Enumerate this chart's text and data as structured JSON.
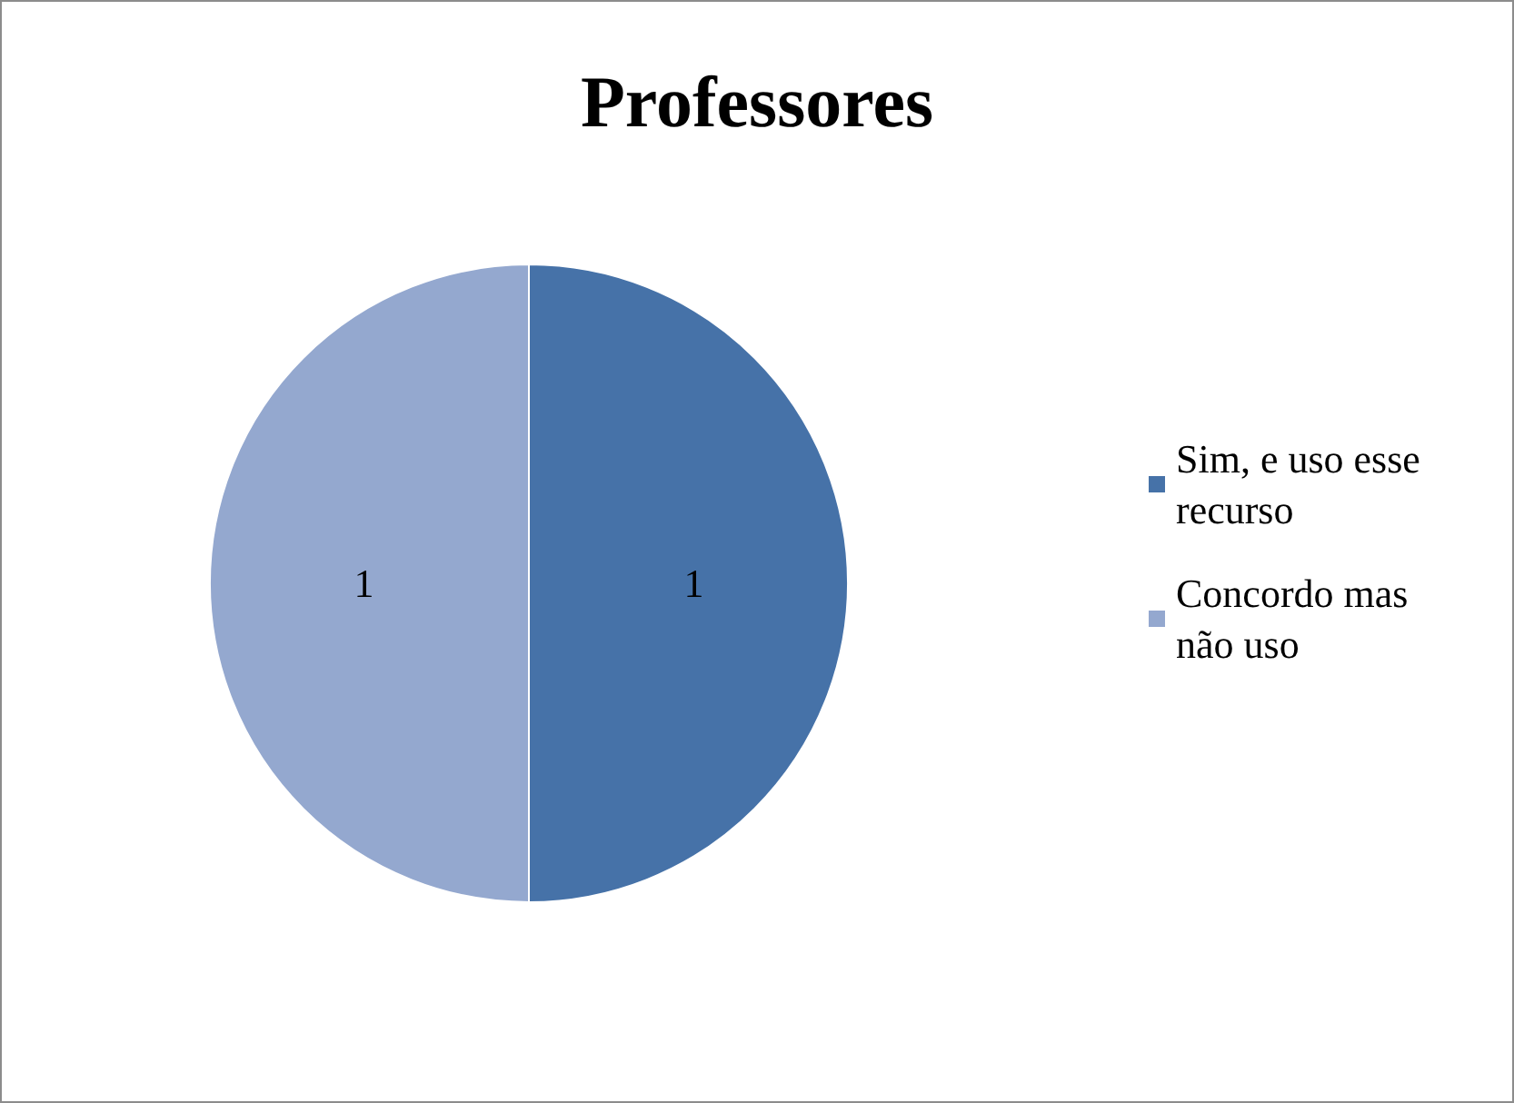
{
  "chart_data": {
    "type": "pie",
    "title": "Professores",
    "categories": [
      "Sim, e uso esse recurso",
      "Concordo mas não uso"
    ],
    "values": [
      1,
      1
    ],
    "colors": [
      "#4672a8",
      "#94a8cf"
    ],
    "data_labels": true,
    "legend": "right"
  }
}
